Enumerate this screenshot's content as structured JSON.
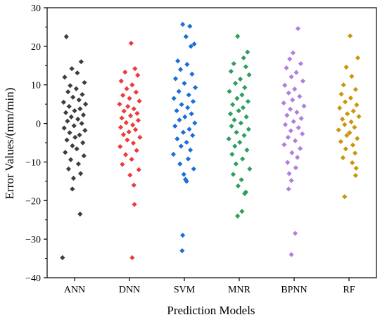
{
  "chart_data": {
    "type": "scatter",
    "title": "",
    "xlabel": "Prediction Models",
    "ylabel": "Error Values/(mm/min)",
    "ylim": [
      -40,
      30
    ],
    "yticks": [
      -40,
      -30,
      -20,
      -10,
      0,
      10,
      20,
      30
    ],
    "categories": [
      "ANN",
      "DNN",
      "SVM",
      "MNR",
      "BPNN",
      "RF"
    ],
    "grid": false,
    "legend": "none",
    "series": [
      {
        "color": "#3d3d3d",
        "points": [
          {
            "x": 0.85,
            "y": 22.5
          },
          {
            "x": 1.12,
            "y": 16
          },
          {
            "x": 0.95,
            "y": 14.2
          },
          {
            "x": 1.05,
            "y": 13.1
          },
          {
            "x": 0.82,
            "y": 12.0
          },
          {
            "x": 1.18,
            "y": 10.6
          },
          {
            "x": 0.92,
            "y": 9.8
          },
          {
            "x": 1.03,
            "y": 9.0
          },
          {
            "x": 0.88,
            "y": 8.2
          },
          {
            "x": 1.14,
            "y": 7.5
          },
          {
            "x": 0.97,
            "y": 6.8
          },
          {
            "x": 1.08,
            "y": 6.1
          },
          {
            "x": 0.8,
            "y": 5.5
          },
          {
            "x": 1.2,
            "y": 5.0
          },
          {
            "x": 0.9,
            "y": 4.4
          },
          {
            "x": 1.1,
            "y": 3.8
          },
          {
            "x": 1.0,
            "y": 3.3
          },
          {
            "x": 0.84,
            "y": 2.8
          },
          {
            "x": 1.16,
            "y": 2.2
          },
          {
            "x": 0.94,
            "y": 1.7
          },
          {
            "x": 1.06,
            "y": 1.1
          },
          {
            "x": 0.87,
            "y": 0.6
          },
          {
            "x": 1.13,
            "y": 0.0
          },
          {
            "x": 0.99,
            "y": -0.6
          },
          {
            "x": 0.81,
            "y": -1.2
          },
          {
            "x": 1.19,
            "y": -1.8
          },
          {
            "x": 0.91,
            "y": -2.4
          },
          {
            "x": 1.09,
            "y": -3.0
          },
          {
            "x": 1.01,
            "y": -3.6
          },
          {
            "x": 0.86,
            "y": -4.3
          },
          {
            "x": 1.15,
            "y": -5.0
          },
          {
            "x": 0.96,
            "y": -5.8
          },
          {
            "x": 1.04,
            "y": -6.6
          },
          {
            "x": 0.83,
            "y": -7.5
          },
          {
            "x": 1.17,
            "y": -8.4
          },
          {
            "x": 0.93,
            "y": -9.4
          },
          {
            "x": 1.07,
            "y": -10.5
          },
          {
            "x": 0.89,
            "y": -11.8
          },
          {
            "x": 1.11,
            "y": -13.0
          },
          {
            "x": 0.98,
            "y": -14.2
          },
          {
            "x": 0.96,
            "y": -17.0
          },
          {
            "x": 1.1,
            "y": -23.5
          },
          {
            "x": 0.78,
            "y": -34.8
          }
        ]
      },
      {
        "color": "#ee3a3a",
        "points": [
          {
            "x": 2.03,
            "y": 20.8
          },
          {
            "x": 1.92,
            "y": 13.3
          },
          {
            "x": 2.1,
            "y": 14.2
          },
          {
            "x": 2.15,
            "y": 12.5
          },
          {
            "x": 1.85,
            "y": 11.0
          },
          {
            "x": 2.05,
            "y": 10.0
          },
          {
            "x": 1.95,
            "y": 9.0
          },
          {
            "x": 2.12,
            "y": 8.1
          },
          {
            "x": 1.88,
            "y": 7.3
          },
          {
            "x": 2.0,
            "y": 6.5
          },
          {
            "x": 2.18,
            "y": 5.8
          },
          {
            "x": 1.82,
            "y": 5.0
          },
          {
            "x": 1.97,
            "y": 4.4
          },
          {
            "x": 2.08,
            "y": 3.8
          },
          {
            "x": 1.9,
            "y": 3.2
          },
          {
            "x": 2.14,
            "y": 2.6
          },
          {
            "x": 2.02,
            "y": 2.0
          },
          {
            "x": 1.86,
            "y": 1.4
          },
          {
            "x": 2.16,
            "y": 0.8
          },
          {
            "x": 1.94,
            "y": 0.2
          },
          {
            "x": 2.06,
            "y": -0.4
          },
          {
            "x": 1.84,
            "y": -1.0
          },
          {
            "x": 2.11,
            "y": -1.6
          },
          {
            "x": 1.99,
            "y": -2.2
          },
          {
            "x": 1.89,
            "y": -2.9
          },
          {
            "x": 2.19,
            "y": -3.6
          },
          {
            "x": 1.96,
            "y": -4.3
          },
          {
            "x": 2.07,
            "y": -5.1
          },
          {
            "x": 1.83,
            "y": -6.0
          },
          {
            "x": 2.13,
            "y": -7.0
          },
          {
            "x": 1.93,
            "y": -8.1
          },
          {
            "x": 2.04,
            "y": -9.3
          },
          {
            "x": 1.87,
            "y": -10.6
          },
          {
            "x": 2.17,
            "y": -12.0
          },
          {
            "x": 2.01,
            "y": -13.4
          },
          {
            "x": 2.08,
            "y": -16.0
          },
          {
            "x": 2.09,
            "y": -21.0
          },
          {
            "x": 2.05,
            "y": -34.8
          }
        ]
      },
      {
        "color": "#1a6fd6",
        "points": [
          {
            "x": 2.97,
            "y": 25.7
          },
          {
            "x": 3.1,
            "y": 25.2
          },
          {
            "x": 3.03,
            "y": 22.5
          },
          {
            "x": 3.18,
            "y": 20.6
          },
          {
            "x": 3.12,
            "y": 20.0
          },
          {
            "x": 2.88,
            "y": 16.2
          },
          {
            "x": 3.05,
            "y": 15.3
          },
          {
            "x": 2.93,
            "y": 14.0
          },
          {
            "x": 3.14,
            "y": 12.8
          },
          {
            "x": 2.84,
            "y": 11.6
          },
          {
            "x": 3.0,
            "y": 10.4
          },
          {
            "x": 3.2,
            "y": 9.3
          },
          {
            "x": 2.9,
            "y": 8.3
          },
          {
            "x": 3.08,
            "y": 7.4
          },
          {
            "x": 2.81,
            "y": 6.5
          },
          {
            "x": 3.16,
            "y": 5.7
          },
          {
            "x": 2.95,
            "y": 4.9
          },
          {
            "x": 3.06,
            "y": 4.1
          },
          {
            "x": 2.86,
            "y": 3.3
          },
          {
            "x": 3.13,
            "y": 2.5
          },
          {
            "x": 3.01,
            "y": 1.7
          },
          {
            "x": 2.91,
            "y": 0.9
          },
          {
            "x": 3.19,
            "y": 0.1
          },
          {
            "x": 2.83,
            "y": -0.7
          },
          {
            "x": 3.09,
            "y": -1.5
          },
          {
            "x": 2.98,
            "y": -2.3
          },
          {
            "x": 3.15,
            "y": -3.1
          },
          {
            "x": 2.87,
            "y": -4.0
          },
          {
            "x": 3.04,
            "y": -4.9
          },
          {
            "x": 2.94,
            "y": -5.9
          },
          {
            "x": 3.11,
            "y": -6.9
          },
          {
            "x": 2.8,
            "y": -8.0
          },
          {
            "x": 3.07,
            "y": -9.2
          },
          {
            "x": 2.92,
            "y": -10.5
          },
          {
            "x": 3.17,
            "y": -11.8
          },
          {
            "x": 2.99,
            "y": -13.2
          },
          {
            "x": 3.02,
            "y": -14.5
          },
          {
            "x": 3.04,
            "y": -15.0
          },
          {
            "x": 2.97,
            "y": -29.0
          },
          {
            "x": 2.96,
            "y": -33.0
          }
        ]
      },
      {
        "color": "#2e9e5b",
        "points": [
          {
            "x": 3.97,
            "y": 22.6
          },
          {
            "x": 4.15,
            "y": 18.5
          },
          {
            "x": 4.08,
            "y": 17.0
          },
          {
            "x": 3.9,
            "y": 15.5
          },
          {
            "x": 4.12,
            "y": 14.7
          },
          {
            "x": 3.85,
            "y": 13.5
          },
          {
            "x": 4.18,
            "y": 12.6
          },
          {
            "x": 4.02,
            "y": 11.5
          },
          {
            "x": 3.93,
            "y": 10.4
          },
          {
            "x": 4.1,
            "y": 9.3
          },
          {
            "x": 3.82,
            "y": 8.3
          },
          {
            "x": 4.05,
            "y": 7.4
          },
          {
            "x": 3.96,
            "y": 6.5
          },
          {
            "x": 4.16,
            "y": 5.7
          },
          {
            "x": 3.88,
            "y": 4.9
          },
          {
            "x": 4.07,
            "y": 4.1
          },
          {
            "x": 3.99,
            "y": 3.3
          },
          {
            "x": 3.84,
            "y": 2.5
          },
          {
            "x": 4.13,
            "y": 1.7
          },
          {
            "x": 3.91,
            "y": 0.9
          },
          {
            "x": 4.03,
            "y": 0.1
          },
          {
            "x": 3.86,
            "y": -0.7
          },
          {
            "x": 4.17,
            "y": -1.5
          },
          {
            "x": 3.95,
            "y": -2.3
          },
          {
            "x": 4.09,
            "y": -3.1
          },
          {
            "x": 3.81,
            "y": -4.0
          },
          {
            "x": 4.01,
            "y": -4.9
          },
          {
            "x": 3.92,
            "y": -5.9
          },
          {
            "x": 4.14,
            "y": -6.9
          },
          {
            "x": 3.87,
            "y": -8.0
          },
          {
            "x": 4.06,
            "y": -9.2
          },
          {
            "x": 3.94,
            "y": -10.5
          },
          {
            "x": 4.19,
            "y": -11.8
          },
          {
            "x": 3.89,
            "y": -13.2
          },
          {
            "x": 4.04,
            "y": -14.6
          },
          {
            "x": 3.98,
            "y": -16.2
          },
          {
            "x": 4.12,
            "y": -17.8
          },
          {
            "x": 4.1,
            "y": -18.2
          },
          {
            "x": 4.05,
            "y": -22.8
          },
          {
            "x": 3.97,
            "y": -24.0
          }
        ]
      },
      {
        "color": "#b07ee0",
        "points": [
          {
            "x": 5.07,
            "y": 24.6
          },
          {
            "x": 4.98,
            "y": 18.3
          },
          {
            "x": 4.92,
            "y": 16.7
          },
          {
            "x": 5.12,
            "y": 15.5
          },
          {
            "x": 4.86,
            "y": 14.4
          },
          {
            "x": 5.04,
            "y": 13.2
          },
          {
            "x": 4.95,
            "y": 12.1
          },
          {
            "x": 5.16,
            "y": 11.0
          },
          {
            "x": 4.83,
            "y": 9.9
          },
          {
            "x": 5.01,
            "y": 8.9
          },
          {
            "x": 4.9,
            "y": 7.9
          },
          {
            "x": 5.1,
            "y": 7.0
          },
          {
            "x": 4.97,
            "y": 6.1
          },
          {
            "x": 4.81,
            "y": 5.3
          },
          {
            "x": 5.18,
            "y": 4.5
          },
          {
            "x": 4.93,
            "y": 3.7
          },
          {
            "x": 5.05,
            "y": 2.9
          },
          {
            "x": 4.87,
            "y": 2.1
          },
          {
            "x": 5.13,
            "y": 1.3
          },
          {
            "x": 4.99,
            "y": 0.5
          },
          {
            "x": 4.84,
            "y": -0.3
          },
          {
            "x": 5.08,
            "y": -1.1
          },
          {
            "x": 4.94,
            "y": -1.9
          },
          {
            "x": 5.15,
            "y": -2.7
          },
          {
            "x": 4.89,
            "y": -3.6
          },
          {
            "x": 5.02,
            "y": -4.5
          },
          {
            "x": 4.82,
            "y": -5.5
          },
          {
            "x": 5.11,
            "y": -6.5
          },
          {
            "x": 4.96,
            "y": -7.6
          },
          {
            "x": 5.06,
            "y": -8.8
          },
          {
            "x": 4.88,
            "y": -10.1
          },
          {
            "x": 5.03,
            "y": -11.5
          },
          {
            "x": 4.91,
            "y": -13.0
          },
          {
            "x": 4.95,
            "y": -14.8
          },
          {
            "x": 4.9,
            "y": -17.0
          },
          {
            "x": 5.02,
            "y": -28.5
          },
          {
            "x": 4.95,
            "y": -34.0
          }
        ]
      },
      {
        "color": "#c9960c",
        "points": [
          {
            "x": 6.02,
            "y": 22.7
          },
          {
            "x": 6.16,
            "y": 17.0
          },
          {
            "x": 5.95,
            "y": 14.6
          },
          {
            "x": 6.05,
            "y": 12.2
          },
          {
            "x": 5.9,
            "y": 10.0
          },
          {
            "x": 6.12,
            "y": 8.8
          },
          {
            "x": 5.86,
            "y": 7.6
          },
          {
            "x": 6.03,
            "y": 6.6
          },
          {
            "x": 5.93,
            "y": 5.6
          },
          {
            "x": 6.14,
            "y": 4.8
          },
          {
            "x": 5.83,
            "y": 4.0
          },
          {
            "x": 6.08,
            "y": 3.2
          },
          {
            "x": 5.97,
            "y": 2.5
          },
          {
            "x": 6.18,
            "y": 1.8
          },
          {
            "x": 5.88,
            "y": 1.1
          },
          {
            "x": 6.04,
            "y": 0.4
          },
          {
            "x": 5.92,
            "y": -0.3
          },
          {
            "x": 6.1,
            "y": -1.0
          },
          {
            "x": 5.81,
            "y": -1.7
          },
          {
            "x": 6.01,
            "y": -2.4
          },
          {
            "x": 5.96,
            "y": -3.1
          },
          {
            "x": 6.15,
            "y": -3.9
          },
          {
            "x": 5.85,
            "y": -4.7
          },
          {
            "x": 6.07,
            "y": -5.6
          },
          {
            "x": 5.94,
            "y": -6.6
          },
          {
            "x": 6.11,
            "y": -7.7
          },
          {
            "x": 5.89,
            "y": -8.9
          },
          {
            "x": 6.06,
            "y": -10.2
          },
          {
            "x": 6.13,
            "y": -11.6
          },
          {
            "x": 6.12,
            "y": -13.5
          },
          {
            "x": 5.92,
            "y": -19.0
          }
        ]
      }
    ]
  }
}
